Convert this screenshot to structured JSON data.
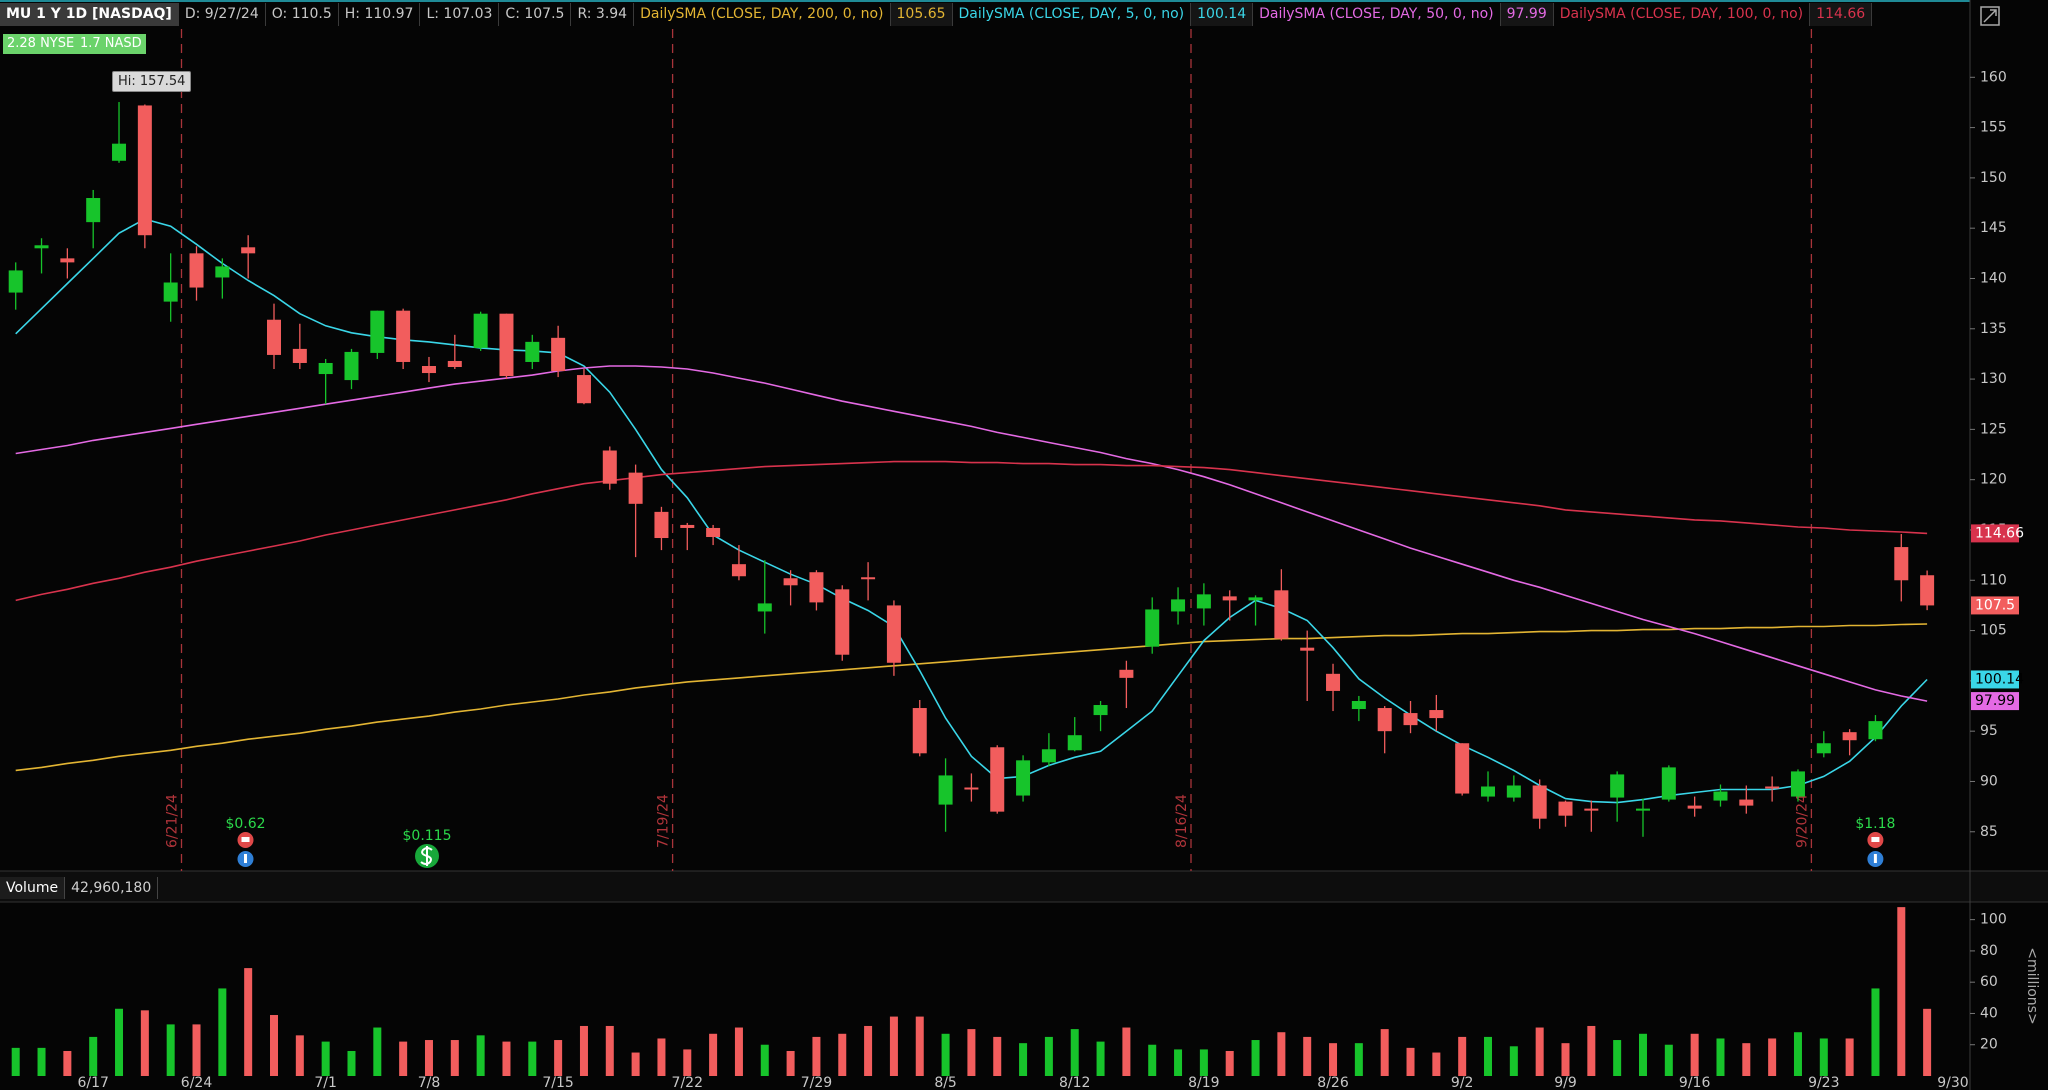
{
  "chart_data": {
    "type": "candlestick",
    "title": "MU 1 Y 1D [NASDAQ]",
    "info": [
      "D: 9/27/24",
      "O: 110.5",
      "H: 110.97",
      "L: 107.03",
      "C: 107.5",
      "R: 3.94"
    ],
    "badges": [
      "2.28 NYSE",
      "1.7 NASD"
    ],
    "annotations": {
      "hi": "Hi: 157.54"
    },
    "expirations": [
      "6/21/24",
      "7/19/24",
      "8/16/24",
      "9/20/24"
    ],
    "events": [
      "$0.62",
      "$0.115",
      "$1.18"
    ],
    "up_color": "#17c42b",
    "down_color": "#f25d5d",
    "categories": [
      null,
      null,
      null,
      "6/17",
      null,
      null,
      null,
      "6/24",
      null,
      null,
      null,
      null,
      "7/1",
      null,
      null,
      null,
      "7/8",
      null,
      null,
      null,
      null,
      "7/15",
      null,
      null,
      null,
      null,
      "7/22",
      null,
      null,
      null,
      null,
      "7/29",
      null,
      null,
      null,
      null,
      "8/5",
      null,
      null,
      null,
      null,
      "8/12",
      null,
      null,
      null,
      null,
      "8/19",
      null,
      null,
      null,
      null,
      "8/26",
      null,
      null,
      null,
      null,
      "9/2",
      null,
      null,
      null,
      "9/9",
      null,
      null,
      null,
      null,
      "9/16",
      null,
      null,
      null,
      null,
      "9/23",
      null,
      null,
      null,
      null,
      "9/30"
    ],
    "open": [
      138.6,
      143,
      142,
      145.6,
      151.7,
      157.2,
      137.7,
      142.5,
      140.1,
      143.1,
      135.9,
      133,
      130.5,
      129.9,
      132.6,
      136.8,
      131.3,
      131.8,
      133.1,
      136.5,
      131.7,
      134.1,
      130.4,
      122.9,
      120.7,
      116.8,
      115.5,
      115.2,
      111.6,
      106.9,
      110.2,
      110.8,
      109.1,
      110.3,
      107.5,
      97.3,
      87.7,
      89.4,
      93.4,
      88.6,
      91.9,
      93.1,
      96.6,
      101.1,
      103.4,
      106.9,
      107.2,
      108.4,
      108,
      109,
      103.3,
      100.7,
      97.2,
      97.3,
      96.8,
      97.1,
      93.8,
      88.5,
      88.4,
      89.6,
      88,
      87.3,
      88.4,
      87.1,
      88.2,
      87.6,
      88.1,
      88.2,
      89.5,
      88.5,
      92.8,
      94.9,
      94.2,
      113.3,
      110.5,
      null
    ],
    "high": [
      141.6,
      144,
      143,
      148.8,
      157.54,
      157.3,
      142.5,
      143.2,
      142,
      144.3,
      137.5,
      135.5,
      132,
      133,
      136.8,
      137,
      132.2,
      134.4,
      136.7,
      136.5,
      134.4,
      135.3,
      131,
      123.3,
      121.5,
      117.3,
      115.7,
      115.5,
      113.5,
      112,
      111,
      111,
      109.5,
      111.8,
      108,
      98.1,
      92.3,
      90.8,
      93.6,
      92.6,
      94.8,
      96.4,
      98,
      102,
      108.3,
      109.3,
      109.7,
      109,
      108.5,
      111.1,
      105,
      101.7,
      98.5,
      97.5,
      98,
      98.6,
      93.8,
      91,
      90.6,
      90.2,
      88.1,
      88.1,
      91,
      88.3,
      91.6,
      88.5,
      89.7,
      89.6,
      90.5,
      91.2,
      95,
      95.2,
      96.6,
      114.6,
      110.97,
      null
    ],
    "low": [
      136.9,
      140.5,
      140,
      143,
      151.5,
      143,
      135.7,
      137.8,
      138,
      140,
      131,
      131,
      127.5,
      129,
      132,
      131,
      129.7,
      131,
      132.8,
      130,
      131,
      130.2,
      127.5,
      119,
      112.3,
      113,
      113,
      113.5,
      110,
      104.7,
      107.5,
      107,
      102,
      108,
      100.5,
      92.5,
      85,
      88,
      86.8,
      88,
      91.5,
      93,
      95,
      97.3,
      102.7,
      105.6,
      105.5,
      106,
      105.5,
      104,
      98,
      97,
      96,
      92.8,
      94.8,
      95,
      88.6,
      88,
      88,
      85.3,
      85.5,
      85,
      86,
      84.5,
      88,
      86.5,
      87.5,
      86.8,
      88,
      88,
      92.4,
      92.6,
      94,
      107.9,
      107.03,
      null
    ],
    "close": [
      140.8,
      143.3,
      141.6,
      148,
      153.4,
      144.3,
      139.6,
      139.1,
      141.2,
      142.5,
      132.4,
      131.6,
      131.6,
      132.7,
      136.8,
      131.7,
      130.6,
      131.2,
      136.5,
      130.3,
      133.7,
      130.8,
      127.6,
      119.6,
      117.6,
      114.2,
      115.2,
      114.3,
      110.4,
      107.7,
      109.5,
      107.8,
      102.6,
      110.1,
      101.8,
      92.8,
      90.6,
      89.2,
      87,
      92.1,
      93.2,
      94.6,
      97.6,
      100.3,
      107.1,
      108.1,
      108.6,
      108,
      108.3,
      104.2,
      103,
      99,
      98,
      95,
      95.6,
      96.3,
      88.8,
      89.5,
      89.6,
      86.3,
      86.6,
      87.1,
      90.7,
      87.3,
      91.4,
      87.3,
      89,
      87.6,
      89.3,
      91,
      93.8,
      94.1,
      96,
      110,
      107.5,
      null
    ],
    "series": [
      {
        "name": "DailySMA (CLOSE, DAY, 200, 0, no)",
        "color": "#e3b533",
        "values": [
          91.1,
          91.4,
          91.8,
          92.1,
          92.5,
          92.8,
          93.1,
          93.5,
          93.8,
          94.2,
          94.5,
          94.8,
          95.2,
          95.5,
          95.9,
          96.2,
          96.5,
          96.9,
          97.2,
          97.6,
          97.9,
          98.2,
          98.6,
          98.9,
          99.3,
          99.6,
          99.9,
          100.1,
          100.3,
          100.5,
          100.7,
          100.9,
          101.1,
          101.3,
          101.5,
          101.7,
          101.9,
          102.1,
          102.3,
          102.5,
          102.7,
          102.9,
          103.1,
          103.3,
          103.5,
          103.7,
          103.9,
          104.0,
          104.1,
          104.2,
          104.2,
          104.3,
          104.4,
          104.5,
          104.5,
          104.6,
          104.7,
          104.7,
          104.8,
          104.9,
          104.9,
          105.0,
          105.0,
          105.1,
          105.1,
          105.2,
          105.2,
          105.3,
          105.3,
          105.4,
          105.4,
          105.5,
          105.5,
          105.6,
          105.65,
          null
        ]
      },
      {
        "name": "DailySMA (CLOSE, DAY, 5, 0, no)",
        "color": "#3ad6e8",
        "values": [
          134.5,
          137,
          139.5,
          142,
          144.5,
          145.9,
          145.2,
          143.4,
          141.5,
          139.8,
          138.3,
          136.5,
          135.3,
          134.6,
          134.2,
          133.9,
          133.7,
          133.4,
          133.1,
          132.9,
          132.8,
          132.6,
          131.3,
          128.7,
          125,
          121,
          118.2,
          114.5,
          113,
          111.8,
          110.6,
          109.6,
          108.2,
          107,
          105.4,
          101,
          96.3,
          92.5,
          90.3,
          90.5,
          91.6,
          92.4,
          93,
          95,
          97,
          100.5,
          104,
          106.3,
          108,
          107.2,
          106,
          103.3,
          100.2,
          98.3,
          96.6,
          95,
          93.6,
          92.4,
          91.1,
          89.6,
          88.3,
          88,
          87.9,
          88.2,
          88.6,
          88.9,
          89.2,
          89.2,
          89.2,
          89.6,
          90.5,
          92,
          94.4,
          97.5,
          100.14,
          null
        ]
      },
      {
        "name": "DailySMA (CLOSE, DAY, 50, 0, no)",
        "color": "#e46ae4",
        "values": [
          122.6,
          123.0,
          123.4,
          123.9,
          124.3,
          124.7,
          125.1,
          125.5,
          125.9,
          126.3,
          126.7,
          127.1,
          127.5,
          127.9,
          128.3,
          128.7,
          129.1,
          129.5,
          129.8,
          130.1,
          130.4,
          130.8,
          131.1,
          131.3,
          131.3,
          131.2,
          131.0,
          130.6,
          130.1,
          129.6,
          129.0,
          128.4,
          127.8,
          127.3,
          126.8,
          126.3,
          125.8,
          125.3,
          124.7,
          124.2,
          123.7,
          123.2,
          122.7,
          122.1,
          121.6,
          121.0,
          120.3,
          119.5,
          118.6,
          117.7,
          116.8,
          115.9,
          115.0,
          114.1,
          113.2,
          112.4,
          111.6,
          110.8,
          110.0,
          109.3,
          108.5,
          107.7,
          106.9,
          106.1,
          105.4,
          104.7,
          103.9,
          103.1,
          102.3,
          101.5,
          100.7,
          99.9,
          99.1,
          98.5,
          97.99,
          null
        ]
      },
      {
        "name": "DailySMA (CLOSE, DAY, 100, 0, no)",
        "color": "#d8334d",
        "values": [
          108,
          108.6,
          109.1,
          109.7,
          110.2,
          110.8,
          111.3,
          111.9,
          112.4,
          112.9,
          113.4,
          113.9,
          114.5,
          115.0,
          115.5,
          116.0,
          116.5,
          117.0,
          117.5,
          118.0,
          118.6,
          119.1,
          119.6,
          119.9,
          120.2,
          120.5,
          120.7,
          120.9,
          121.1,
          121.3,
          121.4,
          121.5,
          121.6,
          121.7,
          121.8,
          121.8,
          121.8,
          121.7,
          121.7,
          121.6,
          121.6,
          121.5,
          121.5,
          121.4,
          121.4,
          121.3,
          121.2,
          121.0,
          120.7,
          120.4,
          120.1,
          119.8,
          119.5,
          119.2,
          118.9,
          118.6,
          118.3,
          118.0,
          117.7,
          117.4,
          117.0,
          116.8,
          116.6,
          116.4,
          116.2,
          116.0,
          115.9,
          115.7,
          115.5,
          115.3,
          115.2,
          115.0,
          114.9,
          114.8,
          114.66,
          null
        ]
      }
    ],
    "ylim": [
      81.1,
      164.8
    ],
    "yticks": [
      85,
      90,
      95,
      100,
      105,
      110,
      115,
      120,
      125,
      130,
      135,
      140,
      145,
      150,
      155,
      160
    ],
    "grid": false,
    "volume": {
      "title": "Volume",
      "label": "42,960,180",
      "unit": "<millions>",
      "values": [
        18,
        18,
        16,
        25,
        43,
        42,
        33,
        33,
        56,
        69,
        39,
        26,
        22,
        16,
        31,
        22,
        23,
        23,
        26,
        22,
        22,
        23,
        32,
        32,
        15,
        24,
        17,
        27,
        31,
        20,
        16,
        25,
        27,
        32,
        38,
        38,
        27,
        30,
        25,
        21,
        25,
        30,
        22,
        31,
        20,
        17,
        17,
        16,
        23,
        28,
        25,
        21,
        21,
        30,
        18,
        15,
        25,
        25,
        19,
        31,
        21,
        32,
        23,
        27,
        20,
        27,
        24,
        21,
        24,
        28,
        24,
        24,
        56,
        108,
        42.96,
        null
      ],
      "ylim": [
        0,
        110
      ],
      "yticks": [
        20,
        40,
        60,
        80,
        100
      ]
    }
  }
}
